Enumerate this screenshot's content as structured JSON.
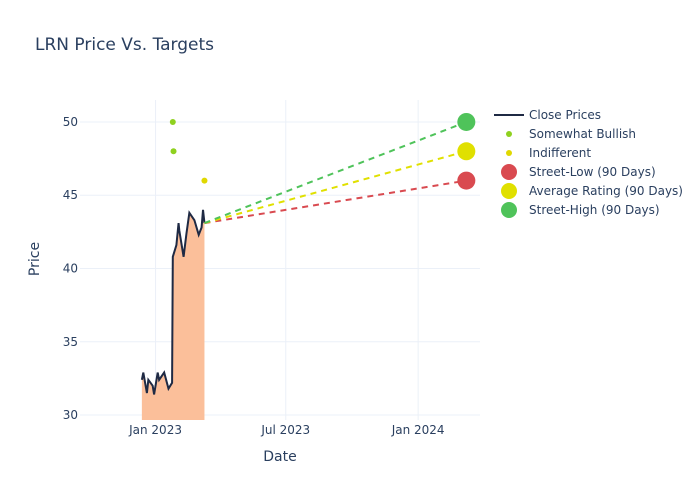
{
  "chart_data": {
    "type": "line",
    "title": "LRN Price Vs. Targets",
    "xlabel": "Date",
    "ylabel": "Price",
    "xlim": [
      "2022-09-18",
      "2024-03-27"
    ],
    "ylim": [
      29.66,
      51.5
    ],
    "x_ticks": [
      {
        "date": "2023-01-01",
        "label": "Jan 2023"
      },
      {
        "date": "2023-07-01",
        "label": "Jul 2023"
      },
      {
        "date": "2024-01-01",
        "label": "Jan 2024"
      }
    ],
    "y_ticks": [
      30,
      35,
      40,
      45,
      50
    ],
    "grid": true,
    "legend_position": "right",
    "close_prices": {
      "name": "Close Prices",
      "color": "#1f2a44",
      "fill_color": "#fbbf9a",
      "points": [
        [
          "2022-12-13",
          32.4
        ],
        [
          "2022-12-15",
          32.9
        ],
        [
          "2022-12-20",
          31.5
        ],
        [
          "2022-12-22",
          32.4
        ],
        [
          "2022-12-28",
          32.0
        ],
        [
          "2022-12-30",
          31.4
        ],
        [
          "2023-01-04",
          32.9
        ],
        [
          "2023-01-06",
          32.4
        ],
        [
          "2023-01-13",
          32.9
        ],
        [
          "2023-01-19",
          31.8
        ],
        [
          "2023-01-24",
          32.2
        ],
        [
          "2023-01-25",
          40.8
        ],
        [
          "2023-01-30",
          41.6
        ],
        [
          "2023-02-02",
          43.1
        ],
        [
          "2023-02-03",
          42.6
        ],
        [
          "2023-02-09",
          40.8
        ],
        [
          "2023-02-13",
          42.4
        ],
        [
          "2023-02-17",
          43.8
        ],
        [
          "2023-02-24",
          43.3
        ],
        [
          "2023-03-02",
          42.3
        ],
        [
          "2023-03-06",
          42.8
        ],
        [
          "2023-03-08",
          44.0
        ],
        [
          "2023-03-10",
          43.1
        ]
      ]
    },
    "ratings": [
      {
        "name": "Somewhat Bullish",
        "color": "#8fd11f",
        "points": [
          [
            "2023-01-25",
            50
          ],
          [
            "2023-01-26",
            48
          ]
        ]
      },
      {
        "name": "Indifferent",
        "color": "#e0d800",
        "points": [
          [
            "2023-03-10",
            46
          ]
        ]
      }
    ],
    "targets": [
      {
        "name": "Street-Low (90 Days)",
        "color": "#d94a50",
        "date": "2024-03-08",
        "value": 46
      },
      {
        "name": "Average Rating (90 Days)",
        "color": "#e0e000",
        "date": "2024-03-08",
        "value": 48
      },
      {
        "name": "Street-High (90 Days)",
        "color": "#4fc35a",
        "date": "2024-03-08",
        "value": 50
      }
    ]
  }
}
